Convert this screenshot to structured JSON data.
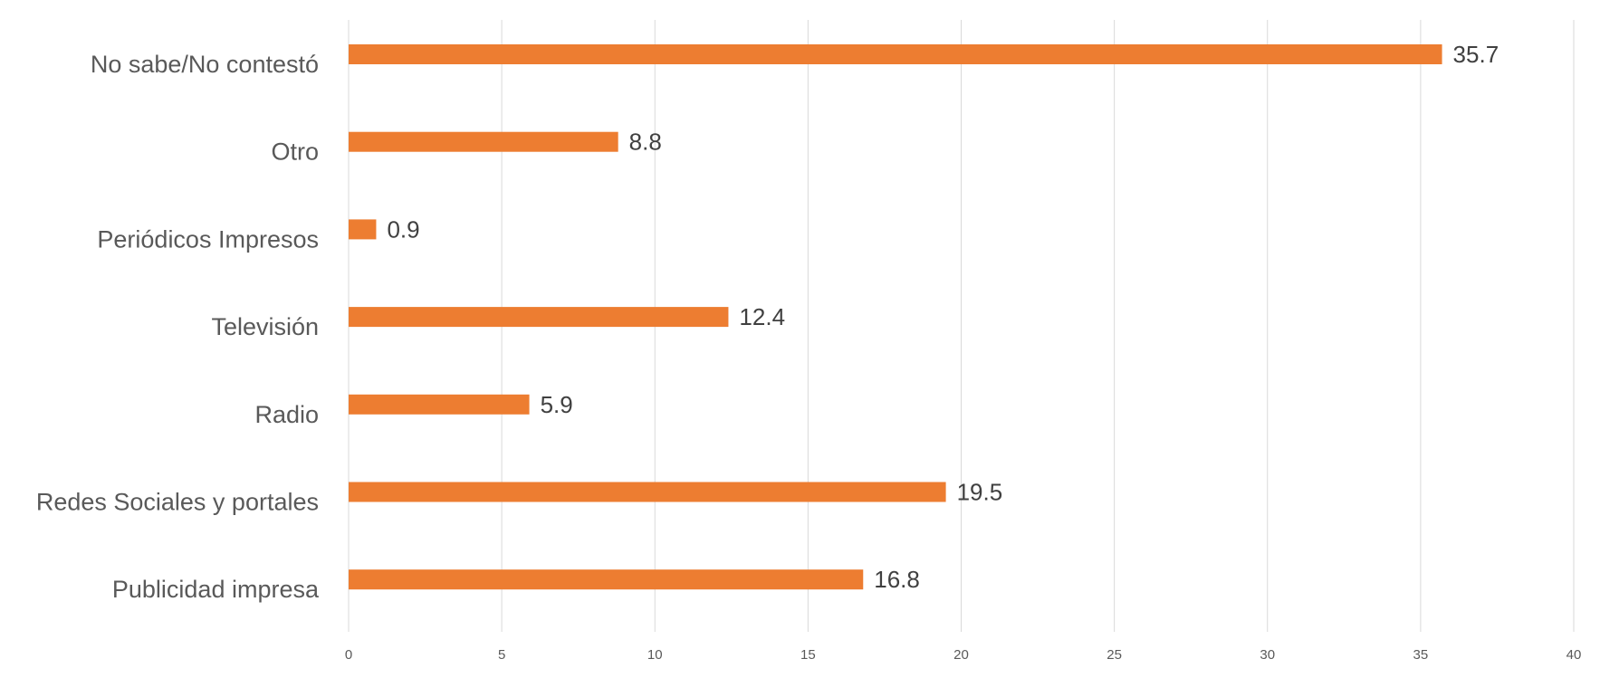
{
  "chart_data": {
    "type": "bar",
    "orientation": "horizontal",
    "categories": [
      "No sabe/No contestó",
      "Otro",
      "Periódicos Impresos",
      "Televisión",
      "Radio",
      "Redes Sociales y portales",
      "Publicidad impresa"
    ],
    "values": [
      35.7,
      8.8,
      0.9,
      12.4,
      5.9,
      19.5,
      16.8
    ],
    "data_labels": [
      "35.7",
      "8.8",
      "0.9",
      "12.4",
      "5.9",
      "19.5",
      "16.8"
    ],
    "xlim": [
      0,
      40
    ],
    "xticks": [
      0,
      5,
      10,
      15,
      20,
      25,
      30,
      35,
      40
    ],
    "xtick_labels": [
      "0",
      "5",
      "10",
      "15",
      "20",
      "25",
      "30",
      "35",
      "40"
    ],
    "grid": true,
    "legend": "none",
    "bar_color": "#ED7D31",
    "title": "",
    "xlabel": "",
    "ylabel": ""
  }
}
